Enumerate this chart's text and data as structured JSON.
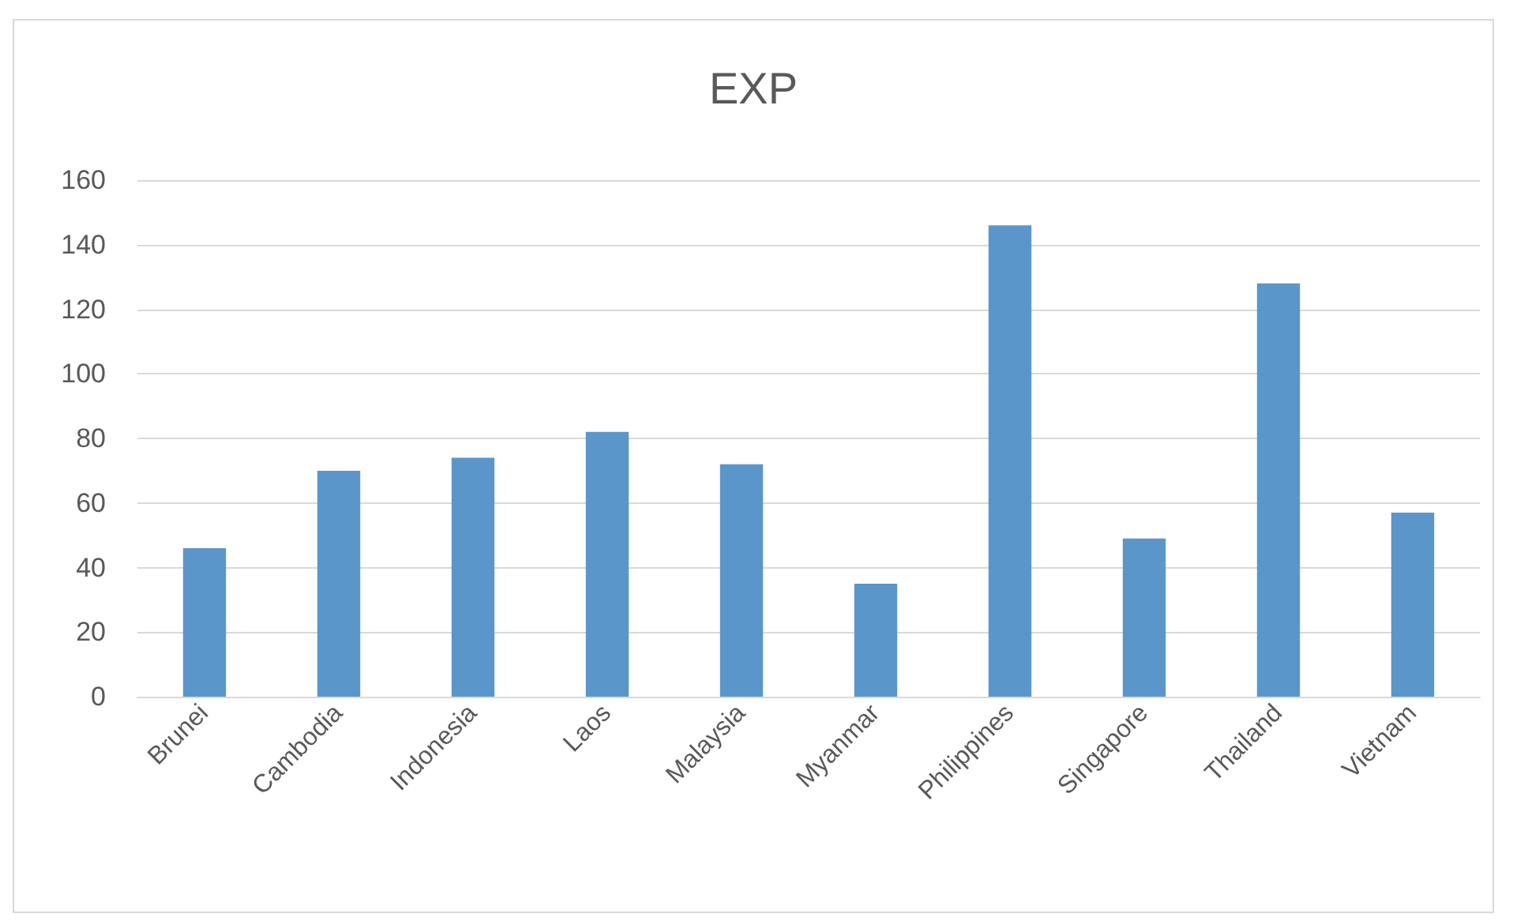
{
  "chart_data": {
    "type": "bar",
    "title": "EXP",
    "categories": [
      "Brunei",
      "Cambodia",
      "Indonesia",
      "Laos",
      "Malaysia",
      "Myanmar",
      "Philippines",
      "Singapore",
      "Thailand",
      "Vietnam"
    ],
    "values": [
      46,
      70,
      74,
      82,
      72,
      35,
      146,
      49,
      128,
      57
    ],
    "color": "#5b96cb",
    "ylim": [
      0,
      160
    ],
    "yticks": [
      0,
      20,
      40,
      60,
      80,
      100,
      120,
      140,
      160
    ],
    "grid": "y"
  }
}
